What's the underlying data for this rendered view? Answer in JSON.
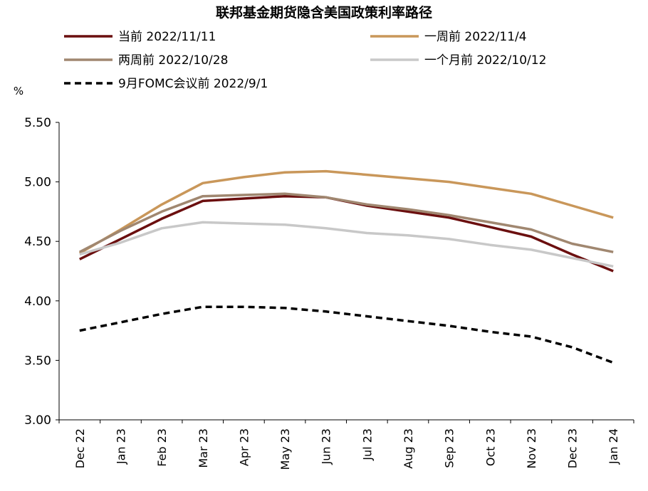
{
  "chart_data": {
    "type": "line",
    "title": "联邦基金期货隐含美国政策利率路径",
    "ylabel": "%",
    "xlabel": "",
    "ylim": [
      3.0,
      5.5
    ],
    "yticks": [
      "3.00",
      "3.50",
      "4.00",
      "4.50",
      "5.00",
      "5.50"
    ],
    "categories": [
      "Dec 22",
      "Jan 23",
      "Feb 23",
      "Mar 23",
      "Apr 23",
      "May 23",
      "Jun 23",
      "Jul 23",
      "Aug 23",
      "Sep 23",
      "Oct 23",
      "Nov 23",
      "Dec 23",
      "Jan 24"
    ],
    "series": [
      {
        "name": "当前 2022/11/11",
        "color": "#6b0f0f",
        "dash": "solid",
        "values": [
          4.35,
          4.52,
          4.69,
          4.84,
          4.86,
          4.88,
          4.87,
          4.8,
          4.75,
          4.7,
          4.62,
          4.54,
          4.39,
          4.25
        ]
      },
      {
        "name": "一周前 2022/11/4",
        "color": "#c9975a",
        "dash": "solid",
        "values": [
          4.4,
          4.6,
          4.81,
          4.99,
          5.04,
          5.08,
          5.09,
          5.06,
          5.03,
          5.0,
          4.95,
          4.9,
          4.8,
          4.7
        ]
      },
      {
        "name": "两周前 2022/10/28",
        "color": "#a08770",
        "dash": "solid",
        "values": [
          4.41,
          4.59,
          4.75,
          4.88,
          4.89,
          4.9,
          4.87,
          4.81,
          4.77,
          4.72,
          4.66,
          4.6,
          4.48,
          4.41
        ]
      },
      {
        "name": "一个月前 2022/10/12",
        "color": "#c8c8c8",
        "dash": "solid",
        "values": [
          4.39,
          4.49,
          4.61,
          4.66,
          4.65,
          4.64,
          4.61,
          4.57,
          4.55,
          4.52,
          4.47,
          4.43,
          4.36,
          4.29
        ]
      },
      {
        "name": "9月FOMC会议前 2022/9/1",
        "color": "#000000",
        "dash": "dashed",
        "values": [
          3.75,
          3.82,
          3.89,
          3.95,
          3.95,
          3.94,
          3.91,
          3.87,
          3.83,
          3.79,
          3.74,
          3.7,
          3.61,
          3.48
        ]
      }
    ],
    "legend": {
      "position": "top",
      "items": [
        {
          "label": "当前 2022/11/11"
        },
        {
          "label": "一周前 2022/11/4"
        },
        {
          "label": "两周前 2022/10/28"
        },
        {
          "label": "一个月前 2022/10/12"
        },
        {
          "label": "9月FOMC会议前 2022/9/1"
        }
      ]
    }
  }
}
